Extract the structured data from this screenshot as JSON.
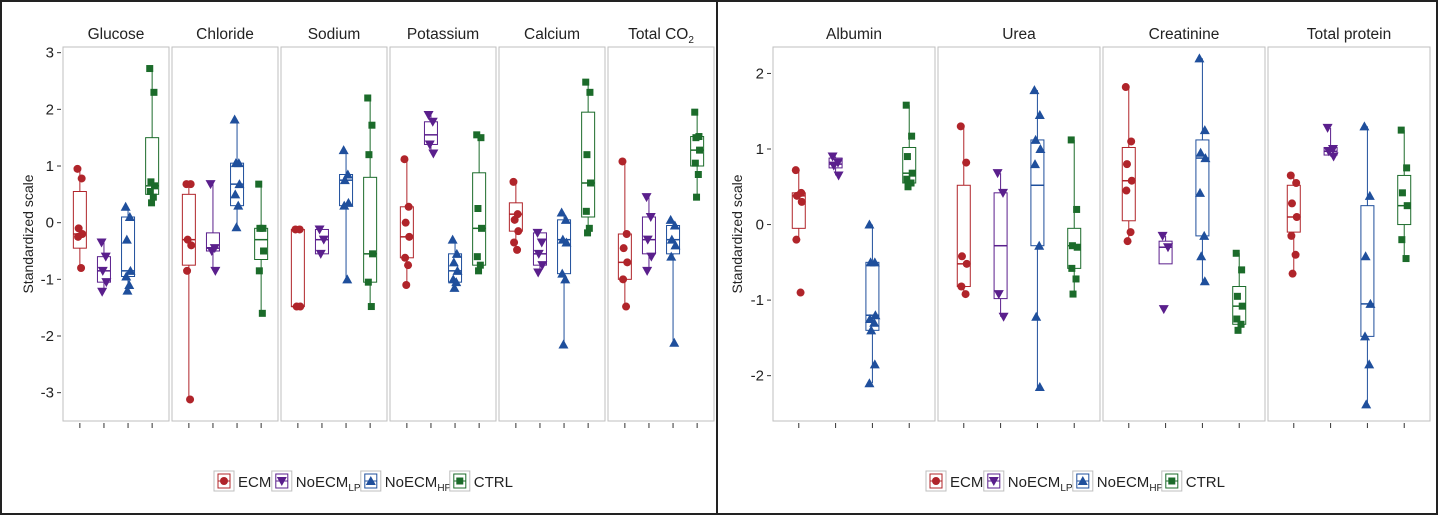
{
  "colors": {
    "ECM": "#b0242a",
    "NoECM_LP": "#5a1f8c",
    "NoECM_HP": "#1f4f9c",
    "CTRL": "#1b6b2a",
    "panel_border": "#bfbfbf",
    "axis": "#333333"
  },
  "legend": [
    {
      "key": "ECM",
      "label": "ECM",
      "sub": "",
      "marker": "circle"
    },
    {
      "key": "NoECM_LP",
      "label": "NoECM",
      "sub": "LP",
      "marker": "triangle-down"
    },
    {
      "key": "NoECM_HP",
      "label": "NoECM",
      "sub": "HP",
      "marker": "triangle-up"
    },
    {
      "key": "CTRL",
      "label": "CTRL",
      "sub": "",
      "marker": "square"
    }
  ],
  "chart_data": [
    {
      "type": "box",
      "ylabel": "Standardized scale",
      "ylim": [
        -3.5,
        3.1
      ],
      "yticks": [
        3,
        2,
        1,
        0,
        -1,
        -2,
        -3
      ],
      "ytick_labels": [
        "3",
        "2",
        "1",
        "0",
        "-1",
        "-2",
        "-3"
      ],
      "groups": [
        "ECM",
        "NoECM_LP",
        "NoECM_HP",
        "CTRL"
      ],
      "facets": [
        {
          "title": "Glucose",
          "sub": "",
          "series": [
            {
              "group": "ECM",
              "box": {
                "q1": -0.45,
                "median": -0.2,
                "q3": 0.55,
                "lo": -0.8,
                "hi": 0.95
              },
              "points": [
                0.95,
                0.78,
                -0.1,
                -0.2,
                -0.25,
                -0.8
              ]
            },
            {
              "group": "NoECM_LP",
              "box": {
                "q1": -1.05,
                "median": -0.85,
                "q3": -0.6,
                "lo": -1.22,
                "hi": -0.35
              },
              "points": [
                -0.35,
                -0.6,
                -0.85,
                -1.05,
                -1.22
              ]
            },
            {
              "group": "NoECM_HP",
              "box": {
                "q1": -0.95,
                "median": -0.85,
                "q3": 0.1,
                "lo": -1.2,
                "hi": 0.28
              },
              "points": [
                0.28,
                0.1,
                -0.3,
                -0.85,
                -0.95,
                -1.1,
                -1.2
              ]
            },
            {
              "group": "CTRL",
              "box": {
                "q1": 0.5,
                "median": 0.65,
                "q3": 1.5,
                "lo": 0.35,
                "hi": 2.72
              },
              "points": [
                2.72,
                2.3,
                0.72,
                0.65,
                0.55,
                0.45,
                0.35
              ]
            }
          ]
        },
        {
          "title": "Chloride",
          "sub": "",
          "series": [
            {
              "group": "ECM",
              "box": {
                "q1": -0.75,
                "median": -0.3,
                "q3": 0.5,
                "lo": -3.12,
                "hi": 0.68
              },
              "points": [
                0.68,
                0.68,
                -0.3,
                -0.4,
                -0.85,
                -3.12
              ]
            },
            {
              "group": "NoECM_LP",
              "box": {
                "q1": -0.5,
                "median": -0.45,
                "q3": -0.18,
                "lo": -0.85,
                "hi": 0.68
              },
              "points": [
                0.68,
                -0.45,
                -0.5,
                -0.85
              ]
            },
            {
              "group": "NoECM_HP",
              "box": {
                "q1": 0.3,
                "median": 0.68,
                "q3": 1.05,
                "lo": -0.08,
                "hi": 1.82
              },
              "points": [
                1.82,
                1.05,
                1.05,
                0.68,
                0.5,
                0.3,
                -0.08
              ]
            },
            {
              "group": "CTRL",
              "box": {
                "q1": -0.65,
                "median": -0.3,
                "q3": -0.1,
                "lo": -1.6,
                "hi": 0.68
              },
              "points": [
                0.68,
                -0.1,
                -0.1,
                -0.5,
                -0.85,
                -1.6
              ]
            }
          ]
        },
        {
          "title": "Sodium",
          "sub": "",
          "series": [
            {
              "group": "ECM",
              "box": {
                "q1": -1.48,
                "median": -1.48,
                "q3": -0.12,
                "lo": -1.48,
                "hi": -0.12
              },
              "points": [
                -0.12,
                -0.12,
                -1.48,
                -1.48
              ]
            },
            {
              "group": "NoECM_LP",
              "box": {
                "q1": -0.55,
                "median": -0.3,
                "q3": -0.12,
                "lo": -0.55,
                "hi": -0.12
              },
              "points": [
                -0.12,
                -0.3,
                -0.55
              ]
            },
            {
              "group": "NoECM_HP",
              "box": {
                "q1": 0.3,
                "median": 0.75,
                "q3": 0.85,
                "lo": -1.0,
                "hi": 1.28
              },
              "points": [
                1.28,
                0.85,
                0.75,
                0.35,
                0.3,
                -1.0
              ]
            },
            {
              "group": "CTRL",
              "box": {
                "q1": -1.05,
                "median": -0.55,
                "q3": 0.8,
                "lo": -1.48,
                "hi": 2.2
              },
              "points": [
                2.2,
                1.72,
                1.2,
                -0.55,
                -1.05,
                -1.48
              ]
            }
          ]
        },
        {
          "title": "Potassium",
          "sub": "",
          "series": [
            {
              "group": "ECM",
              "box": {
                "q1": -0.62,
                "median": -0.25,
                "q3": 0.28,
                "lo": -1.1,
                "hi": 1.12
              },
              "points": [
                1.12,
                0.28,
                0.0,
                -0.25,
                -0.62,
                -0.75,
                -1.1
              ]
            },
            {
              "group": "NoECM_LP",
              "box": {
                "q1": 1.38,
                "median": 1.55,
                "q3": 1.78,
                "lo": 1.22,
                "hi": 1.9
              },
              "points": [
                1.9,
                1.78,
                1.38,
                1.22
              ]
            },
            {
              "group": "NoECM_HP",
              "box": {
                "q1": -1.05,
                "median": -0.85,
                "q3": -0.55,
                "lo": -1.15,
                "hi": -0.3
              },
              "points": [
                -0.3,
                -0.55,
                -0.7,
                -0.85,
                -1.0,
                -1.05,
                -1.15
              ]
            },
            {
              "group": "CTRL",
              "box": {
                "q1": -0.75,
                "median": -0.1,
                "q3": 0.88,
                "lo": -0.85,
                "hi": 1.55
              },
              "points": [
                1.55,
                1.5,
                0.25,
                -0.1,
                -0.6,
                -0.75,
                -0.85
              ]
            }
          ]
        },
        {
          "title": "Calcium",
          "sub": "",
          "series": [
            {
              "group": "ECM",
              "box": {
                "q1": -0.15,
                "median": 0.15,
                "q3": 0.35,
                "lo": -0.48,
                "hi": 0.72
              },
              "points": [
                0.72,
                0.15,
                0.05,
                -0.15,
                -0.35,
                -0.48
              ]
            },
            {
              "group": "NoECM_LP",
              "box": {
                "q1": -0.75,
                "median": -0.55,
                "q3": -0.18,
                "lo": -0.88,
                "hi": -0.18
              },
              "points": [
                -0.18,
                -0.35,
                -0.55,
                -0.75,
                -0.88
              ]
            },
            {
              "group": "NoECM_HP",
              "box": {
                "q1": -0.9,
                "median": -0.3,
                "q3": 0.05,
                "lo": -2.15,
                "hi": 0.18
              },
              "points": [
                0.18,
                0.05,
                -0.3,
                -0.35,
                -0.9,
                -1.0,
                -2.15
              ]
            },
            {
              "group": "CTRL",
              "box": {
                "q1": 0.1,
                "median": 0.7,
                "q3": 1.95,
                "lo": -0.18,
                "hi": 2.48
              },
              "points": [
                2.48,
                2.3,
                1.2,
                0.7,
                0.2,
                -0.1,
                -0.18
              ]
            }
          ]
        },
        {
          "title": "Total CO",
          "sub": "2",
          "series": [
            {
              "group": "ECM",
              "box": {
                "q1": -1.0,
                "median": -0.7,
                "q3": -0.2,
                "lo": -1.48,
                "hi": 1.08
              },
              "points": [
                1.08,
                -0.2,
                -0.45,
                -0.7,
                -1.0,
                -1.48
              ]
            },
            {
              "group": "NoECM_LP",
              "box": {
                "q1": -0.55,
                "median": -0.3,
                "q3": 0.1,
                "lo": -0.85,
                "hi": 0.45
              },
              "points": [
                0.45,
                0.1,
                -0.3,
                -0.6,
                -0.85
              ]
            },
            {
              "group": "NoECM_HP",
              "box": {
                "q1": -0.55,
                "median": -0.3,
                "q3": -0.05,
                "lo": -2.12,
                "hi": 0.05
              },
              "points": [
                0.05,
                -0.05,
                -0.3,
                -0.4,
                -0.6,
                -2.12
              ]
            },
            {
              "group": "CTRL",
              "box": {
                "q1": 1.0,
                "median": 1.28,
                "q3": 1.52,
                "lo": 0.45,
                "hi": 1.95
              },
              "points": [
                1.95,
                1.52,
                1.5,
                1.28,
                1.05,
                0.85,
                0.45
              ]
            }
          ]
        }
      ]
    },
    {
      "type": "box",
      "ylabel": "Standardized scale",
      "ylim": [
        -2.6,
        2.35
      ],
      "yticks": [
        2,
        1,
        0,
        -1,
        -2
      ],
      "ytick_labels": [
        "2",
        "1",
        "0",
        "-1",
        "-2"
      ],
      "groups": [
        "ECM",
        "NoECM_LP",
        "NoECM_HP",
        "CTRL"
      ],
      "facets": [
        {
          "title": "Albumin",
          "sub": "",
          "series": [
            {
              "group": "ECM",
              "box": {
                "q1": -0.05,
                "median": 0.38,
                "q3": 0.42,
                "lo": -0.2,
                "hi": 0.72
              },
              "points": [
                0.72,
                0.42,
                0.38,
                0.3,
                -0.2,
                -0.9
              ]
            },
            {
              "group": "NoECM_LP",
              "box": {
                "q1": 0.75,
                "median": 0.8,
                "q3": 0.88,
                "lo": 0.65,
                "hi": 0.9
              },
              "points": [
                0.9,
                0.82,
                0.78,
                0.65
              ]
            },
            {
              "group": "NoECM_HP",
              "box": {
                "q1": -1.4,
                "median": -1.2,
                "q3": -0.5,
                "lo": -2.1,
                "hi": 0.0
              },
              "points": [
                0.0,
                -0.5,
                -0.5,
                -1.2,
                -1.25,
                -1.3,
                -1.4,
                -1.85,
                -2.1
              ]
            },
            {
              "group": "CTRL",
              "box": {
                "q1": 0.55,
                "median": 0.68,
                "q3": 1.02,
                "lo": 0.5,
                "hi": 1.58
              },
              "points": [
                1.58,
                1.17,
                0.9,
                0.68,
                0.6,
                0.55,
                0.5
              ]
            }
          ]
        },
        {
          "title": "Urea",
          "sub": "",
          "series": [
            {
              "group": "ECM",
              "box": {
                "q1": -0.82,
                "median": -0.52,
                "q3": 0.52,
                "lo": -0.92,
                "hi": 1.3
              },
              "points": [
                1.3,
                0.82,
                -0.42,
                -0.52,
                -0.82,
                -0.92
              ]
            },
            {
              "group": "NoECM_LP",
              "box": {
                "q1": -0.98,
                "median": -0.28,
                "q3": 0.42,
                "lo": -1.22,
                "hi": 0.68
              },
              "points": [
                0.68,
                0.42,
                -0.92,
                -1.22
              ]
            },
            {
              "group": "NoECM_HP",
              "box": {
                "q1": -0.28,
                "median": 0.52,
                "q3": 1.12,
                "lo": -2.15,
                "hi": 1.78
              },
              "points": [
                1.78,
                1.45,
                1.12,
                1.0,
                0.8,
                -0.28,
                -1.22,
                -2.15
              ]
            },
            {
              "group": "CTRL",
              "box": {
                "q1": -0.58,
                "median": -0.28,
                "q3": -0.05,
                "lo": -0.92,
                "hi": 1.12
              },
              "points": [
                1.12,
                0.2,
                -0.28,
                -0.3,
                -0.58,
                -0.72,
                -0.92
              ]
            }
          ]
        },
        {
          "title": "Creatinine",
          "sub": "",
          "series": [
            {
              "group": "ECM",
              "box": {
                "q1": 0.05,
                "median": 0.58,
                "q3": 1.02,
                "lo": -0.22,
                "hi": 1.82
              },
              "points": [
                1.82,
                1.1,
                0.8,
                0.58,
                0.45,
                -0.1,
                -0.22
              ]
            },
            {
              "group": "NoECM_LP",
              "box": {
                "q1": -0.52,
                "median": -0.3,
                "q3": -0.22,
                "lo": -0.52,
                "hi": -0.15
              },
              "points": [
                -0.15,
                -0.3,
                -1.12
              ]
            },
            {
              "group": "NoECM_HP",
              "box": {
                "q1": -0.15,
                "median": 0.88,
                "q3": 1.12,
                "lo": -0.75,
                "hi": 2.2
              },
              "points": [
                2.2,
                1.25,
                0.95,
                0.88,
                0.42,
                -0.15,
                -0.42,
                -0.75
              ]
            },
            {
              "group": "CTRL",
              "box": {
                "q1": -1.32,
                "median": -1.08,
                "q3": -0.82,
                "lo": -1.4,
                "hi": -0.38
              },
              "points": [
                -0.38,
                -0.6,
                -0.95,
                -1.08,
                -1.25,
                -1.32,
                -1.4
              ]
            }
          ]
        },
        {
          "title": "Total protein",
          "sub": "",
          "series": [
            {
              "group": "ECM",
              "box": {
                "q1": -0.1,
                "median": 0.1,
                "q3": 0.52,
                "lo": -0.65,
                "hi": 0.65
              },
              "points": [
                0.65,
                0.55,
                0.28,
                0.1,
                -0.15,
                -0.4,
                -0.65
              ]
            },
            {
              "group": "NoECM_LP",
              "box": {
                "q1": 0.92,
                "median": 0.97,
                "q3": 1.02,
                "lo": 0.9,
                "hi": 1.28
              },
              "points": [
                1.28,
                1.0,
                0.97,
                0.9
              ]
            },
            {
              "group": "NoECM_HP",
              "box": {
                "q1": -1.48,
                "median": -1.05,
                "q3": 0.25,
                "lo": -2.38,
                "hi": 1.3
              },
              "points": [
                1.3,
                0.38,
                -0.42,
                -1.05,
                -1.48,
                -1.85,
                -2.38
              ]
            },
            {
              "group": "CTRL",
              "box": {
                "q1": 0.0,
                "median": 0.25,
                "q3": 0.65,
                "lo": -0.45,
                "hi": 1.25
              },
              "points": [
                1.25,
                0.75,
                0.42,
                0.25,
                -0.2,
                -0.45
              ]
            }
          ]
        }
      ]
    }
  ]
}
